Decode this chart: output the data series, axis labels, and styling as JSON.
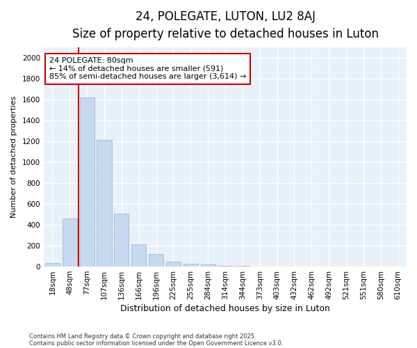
{
  "title": "24, POLEGATE, LUTON, LU2 8AJ",
  "subtitle": "Size of property relative to detached houses in Luton",
  "xlabel": "Distribution of detached houses by size in Luton",
  "ylabel": "Number of detached properties",
  "categories": [
    "18sqm",
    "48sqm",
    "77sqm",
    "107sqm",
    "136sqm",
    "166sqm",
    "196sqm",
    "225sqm",
    "255sqm",
    "284sqm",
    "314sqm",
    "344sqm",
    "373sqm",
    "403sqm",
    "432sqm",
    "462sqm",
    "492sqm",
    "521sqm",
    "551sqm",
    "580sqm",
    "610sqm"
  ],
  "values": [
    35,
    460,
    1620,
    1210,
    510,
    215,
    120,
    50,
    30,
    20,
    5,
    5,
    0,
    0,
    0,
    0,
    0,
    0,
    0,
    0,
    0
  ],
  "bar_color": "#c6d9f0",
  "bar_edge_color": "#a0b8d0",
  "vline_color": "#cc0000",
  "vline_idx": 2,
  "annotation_text": "24 POLEGATE: 80sqm\n← 14% of detached houses are smaller (591)\n85% of semi-detached houses are larger (3,614) →",
  "annotation_box_color": "#ffffff",
  "annotation_box_edge": "#cc0000",
  "ylim": [
    0,
    2100
  ],
  "yticks": [
    0,
    200,
    400,
    600,
    800,
    1000,
    1200,
    1400,
    1600,
    1800,
    2000
  ],
  "footer_line1": "Contains HM Land Registry data © Crown copyright and database right 2025.",
  "footer_line2": "Contains public sector information licensed under the Open Government Licence v3.0.",
  "bg_color": "#ffffff",
  "plot_bg_color": "#e8f0f8",
  "grid_color": "#ffffff",
  "title_fontsize": 12,
  "subtitle_fontsize": 10,
  "xlabel_fontsize": 9,
  "ylabel_fontsize": 8,
  "tick_fontsize": 7.5,
  "annotation_fontsize": 8
}
